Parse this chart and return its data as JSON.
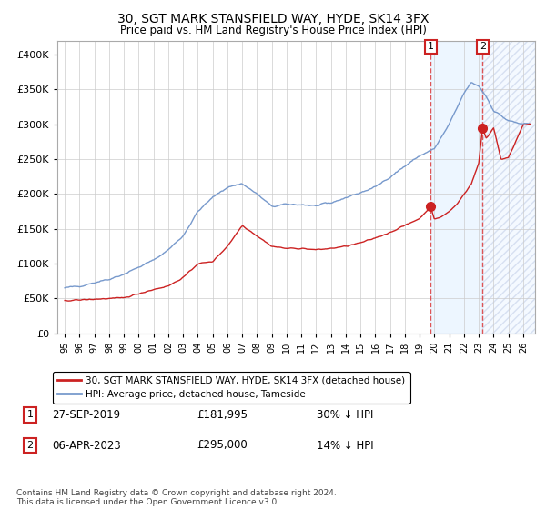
{
  "title": "30, SGT MARK STANSFIELD WAY, HYDE, SK14 3FX",
  "subtitle": "Price paid vs. HM Land Registry's House Price Index (HPI)",
  "legend_line1": "30, SGT MARK STANSFIELD WAY, HYDE, SK14 3FX (detached house)",
  "legend_line2": "HPI: Average price, detached house, Tameside",
  "marker1_date": "27-SEP-2019",
  "marker1_price": 181995,
  "marker1_label": "30% ↓ HPI",
  "marker2_date": "06-APR-2023",
  "marker2_price": 295000,
  "marker2_label": "14% ↓ HPI",
  "footnote": "Contains HM Land Registry data © Crown copyright and database right 2024.\nThis data is licensed under the Open Government Licence v3.0.",
  "hpi_color": "#7799cc",
  "price_color": "#cc2222",
  "background_color": "#ffffff",
  "grid_color": "#cccccc",
  "highlight_color": "#ddeeff",
  "ylim": [
    0,
    420000
  ],
  "xlim_start": 1994.5,
  "xlim_end": 2026.8,
  "marker1_x": 2019.75,
  "marker2_x": 2023.25
}
